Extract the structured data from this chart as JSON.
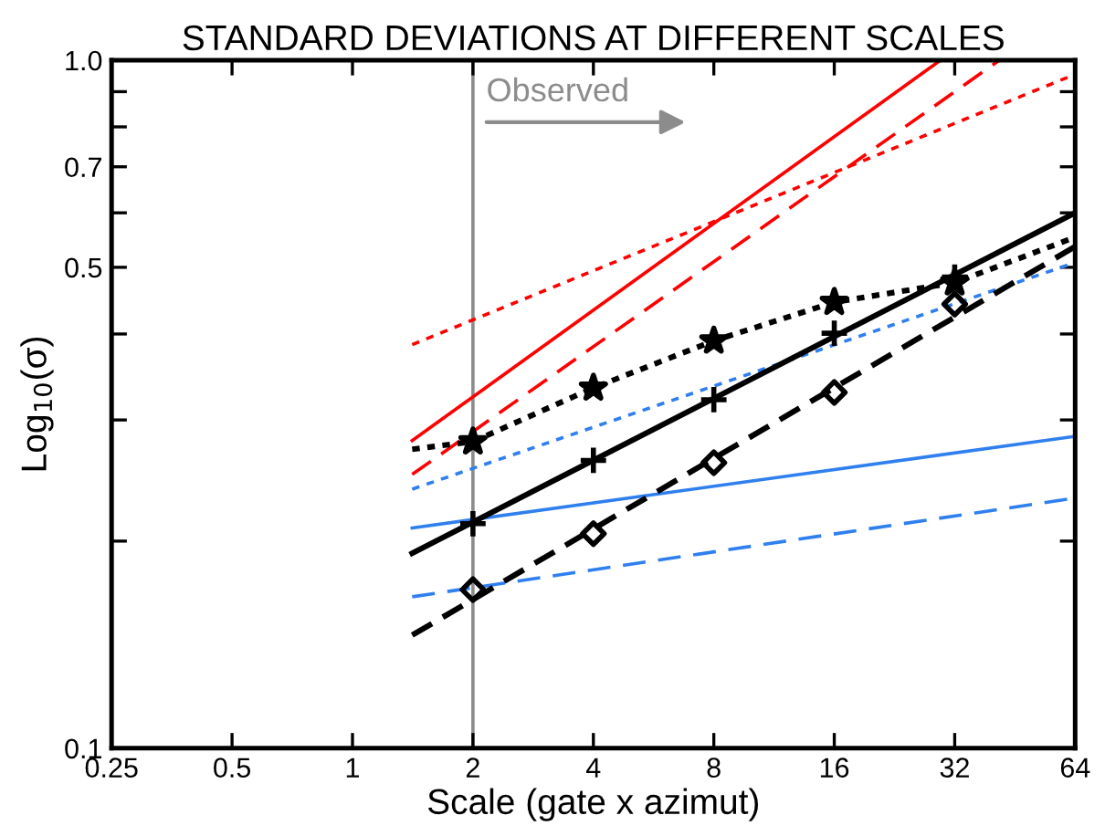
{
  "chart_data": {
    "type": "line",
    "title": "STANDARD DEVIATIONS AT DIFFERENT SCALES",
    "xlabel": "Scale (gate x azimut)",
    "ylabel": "Log$_{10}$(σ)",
    "log": "xy",
    "xlim": [
      0.25,
      64
    ],
    "ylim": [
      0.1,
      1.0
    ],
    "xticks": [
      0.25,
      0.5,
      1,
      2,
      4,
      8,
      16,
      32,
      64
    ],
    "yticks": [
      0.1,
      {
        "value": 0.2,
        "label": null
      },
      {
        "value": 0.3,
        "label": null
      },
      {
        "value": 0.4,
        "label": null
      },
      0.5,
      {
        "value": 0.6,
        "label": null
      },
      0.7,
      {
        "value": 0.8,
        "label": null
      },
      {
        "value": 0.9,
        "label": null
      },
      {
        "value": 1.0,
        "label": "1.0"
      }
    ],
    "grid": false,
    "legend": false,
    "ref_lines": [
      {
        "axis": "x",
        "value": 2,
        "color": "#8c8c8c",
        "line_style": "solid"
      }
    ],
    "annotations": [
      "Observed"
    ],
    "series": [
      {
        "color": "#ff0000",
        "line_style": "solid",
        "x": [
          1.41,
          29.5
        ],
        "values": [
          0.28,
          1.0
        ]
      },
      {
        "type": "line",
        "color": "#ff0000",
        "line_style": "dashed",
        "x": [
          1.41,
          41.4
        ],
        "values": [
          0.25,
          1.0
        ]
      },
      {
        "type": "line",
        "color": "#ff0000",
        "line_style": "dotted",
        "x": [
          1.41,
          64
        ],
        "values": [
          0.386,
          0.954
        ]
      },
      {
        "type": "line",
        "color": "#2f7fef",
        "line_style": "dotted",
        "x": [
          1.41,
          64
        ],
        "values": [
          0.238,
          0.508
        ]
      },
      {
        "type": "line",
        "color": "#2f7fef",
        "line_style": "solid",
        "x": [
          1.41,
          64
        ],
        "values": [
          0.209,
          0.284
        ]
      },
      {
        "type": "line",
        "color": "#2f7fef",
        "line_style": "dashed",
        "x": [
          1.41,
          64
        ],
        "values": [
          0.166,
          0.231
        ]
      },
      {
        "type": "line",
        "color": "#000000",
        "line_style": "dotted",
        "x": [
          1.41,
          2,
          4,
          8,
          16,
          32,
          64
        ],
        "values": [
          0.272,
          0.279,
          0.334,
          0.391,
          0.445,
          0.475,
          0.553
        ]
      },
      {
        "type": "line",
        "color": "#000000",
        "line_style": "solid",
        "x": [
          1.41,
          64
        ],
        "values": [
          0.192,
          0.6
        ]
      },
      {
        "type": "line",
        "color": "#000000",
        "line_style": "dashed",
        "x": [
          1.41,
          64
        ],
        "values": [
          0.146,
          0.536
        ]
      },
      {
        "type": "scatter",
        "color": "#000000",
        "marker": "star",
        "x": [
          2,
          4,
          8,
          16,
          32
        ],
        "values": [
          0.279,
          0.334,
          0.391,
          0.445,
          0.475
        ]
      },
      {
        "type": "scatter",
        "color": "#000000",
        "marker": "cross",
        "x": [
          2,
          4,
          8,
          16,
          32
        ],
        "values": [
          0.212,
          0.262,
          0.321,
          0.401,
          0.484
        ]
      },
      {
        "type": "scatter",
        "color": "#000000",
        "marker": "diamond",
        "x": [
          2,
          4,
          8,
          16,
          32
        ],
        "values": [
          0.17,
          0.205,
          0.26,
          0.329,
          0.442
        ]
      }
    ]
  }
}
